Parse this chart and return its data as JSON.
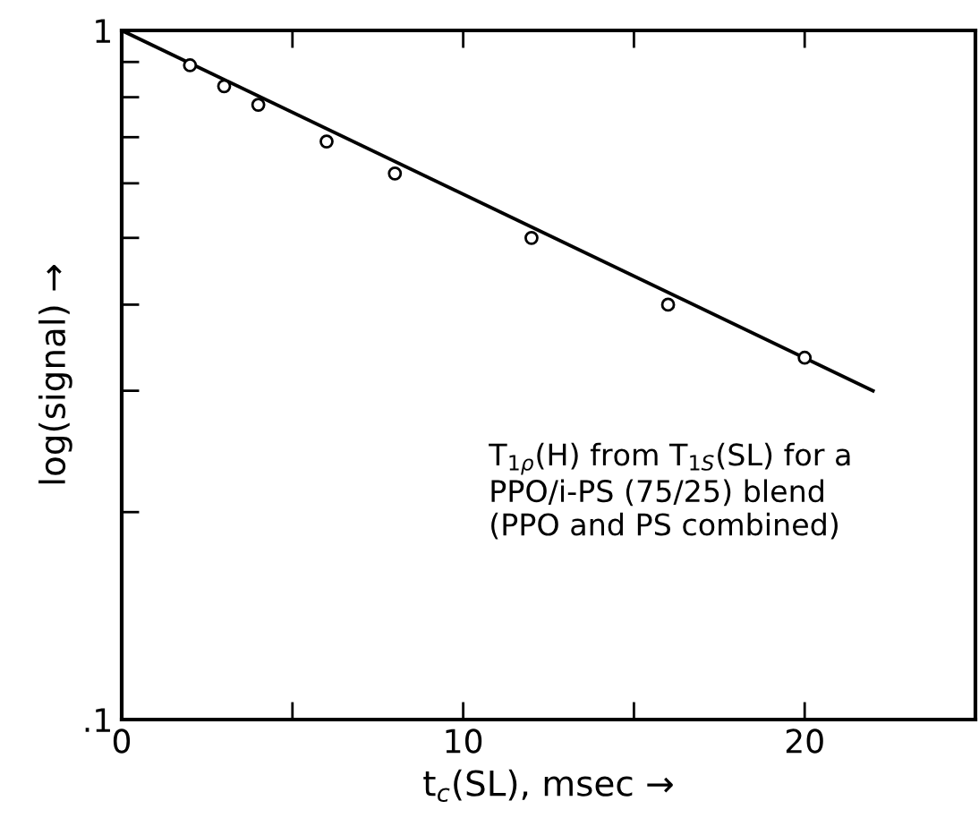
{
  "chart_data": {
    "type": "scatter",
    "xlabel": "t$_{c}$(SL), msec →",
    "ylabel": "log(signal) →",
    "annotations": [
      "T$_{1ρ}$(H) from T$_{1S}$(SL) for a\nPPO/i-PS (75/25) blend\n(PPO and PS combined)"
    ],
    "log": "y",
    "grid": false,
    "legend": false,
    "xlim": [
      0,
      25
    ],
    "xticks": [
      0,
      {
        "value": 5,
        "label": null
      },
      10,
      {
        "value": 15,
        "label": null
      },
      20
    ],
    "ylim": [
      0.1,
      1
    ],
    "yticks": [
      {
        "value": 0.1,
        "label": ".1"
      },
      {
        "value": 0.2,
        "label": null
      },
      {
        "value": 0.3,
        "label": null
      },
      {
        "value": 0.4,
        "label": null
      },
      {
        "value": 0.5,
        "label": null
      },
      {
        "value": 0.6,
        "label": null
      },
      {
        "value": 0.7,
        "label": null
      },
      {
        "value": 0.8,
        "label": null
      },
      {
        "value": 0.9,
        "label": null
      },
      1
    ],
    "series": [
      {
        "color": "#000000",
        "marker": "circle",
        "x": [
          2,
          3,
          4,
          6,
          8,
          12,
          16,
          20
        ],
        "values": [
          0.89,
          0.83,
          0.78,
          0.69,
          0.62,
          0.5,
          0.4,
          0.335
        ]
      },
      {
        "type": "line",
        "color": "#000000",
        "marker": "none",
        "line_style": "solid",
        "x": [
          0,
          22
        ],
        "values": [
          1,
          0.3
        ]
      }
    ]
  }
}
